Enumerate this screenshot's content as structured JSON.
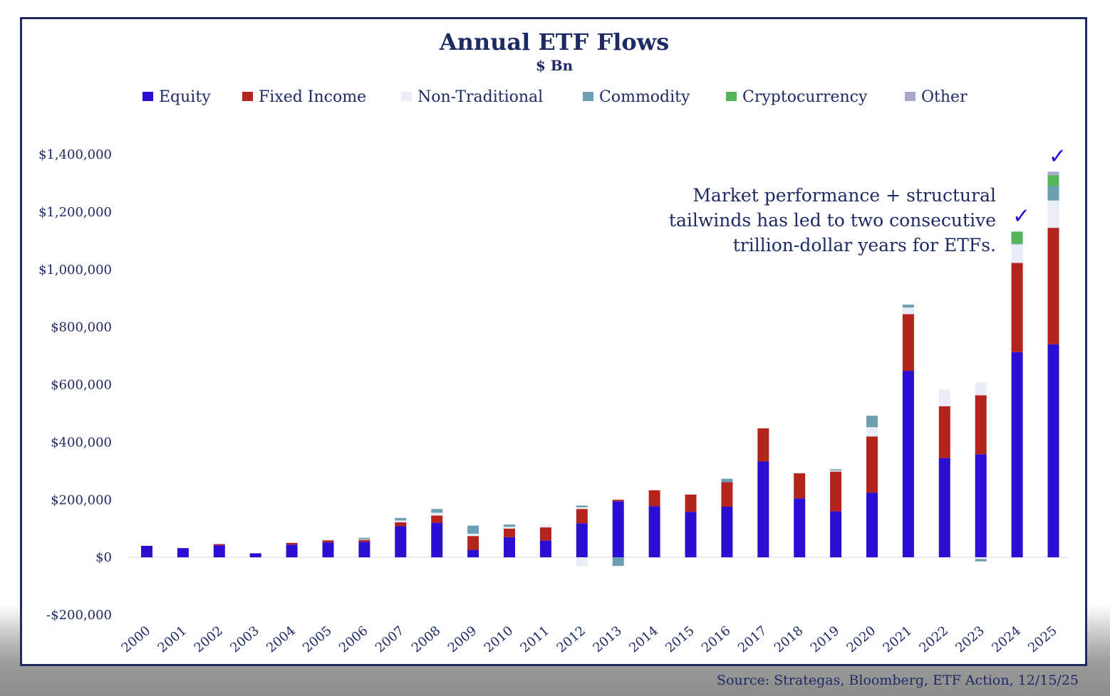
{
  "chart_data": {
    "type": "bar",
    "stacked": true,
    "title": "Annual ETF Flows",
    "subtitle": "$ Bn",
    "xlabel": "",
    "ylabel": "",
    "ylim": [
      -200000,
      1400000
    ],
    "yticks": [
      -200000,
      0,
      200000,
      400000,
      600000,
      800000,
      1000000,
      1200000,
      1400000
    ],
    "ytick_labels": [
      "-$200,000",
      "$0",
      "$200,000",
      "$400,000",
      "$600,000",
      "$800,000",
      "$1,000,000",
      "$1,200,000",
      "$1,400,000"
    ],
    "categories": [
      "2000",
      "2001",
      "2002",
      "2003",
      "2004",
      "2005",
      "2006",
      "2007",
      "2008",
      "2009",
      "2010",
      "2011",
      "2012",
      "2013",
      "2014",
      "2015",
      "2016",
      "2017",
      "2018",
      "2019",
      "2020",
      "2021",
      "2022",
      "2023",
      "2024",
      "2025"
    ],
    "series": [
      {
        "name": "Equity",
        "color": "#2a0ed1",
        "values": [
          40000,
          32000,
          42000,
          14000,
          44000,
          52000,
          54000,
          108000,
          120000,
          26000,
          70000,
          58000,
          118000,
          195000,
          178000,
          158000,
          176000,
          333000,
          205000,
          160000,
          225000,
          648000,
          345000,
          358000,
          713000,
          740000
        ]
      },
      {
        "name": "Fixed Income",
        "color": "#b5231d",
        "values": [
          0,
          0,
          4000,
          0,
          6000,
          7000,
          7000,
          14000,
          25000,
          48000,
          30000,
          46000,
          50000,
          5000,
          55000,
          60000,
          85000,
          115000,
          87000,
          138000,
          195000,
          197000,
          180000,
          205000,
          310000,
          405000
        ]
      },
      {
        "name": "Non-Traditional",
        "color": "#e9edf8",
        "values": [
          0,
          0,
          0,
          0,
          0,
          0,
          2000,
          6000,
          10000,
          8000,
          6000,
          8000,
          6000,
          0,
          0,
          0,
          0,
          0,
          4000,
          4000,
          32000,
          23000,
          58000,
          45000,
          65000,
          95000
        ]
      },
      {
        "name": "Commodity",
        "color": "#6b9fb1",
        "values": [
          0,
          0,
          0,
          0,
          0,
          0,
          5000,
          9000,
          13000,
          28000,
          8000,
          0,
          6000,
          -30000,
          0,
          0,
          12000,
          0,
          0,
          4000,
          40000,
          10000,
          0,
          0,
          2000,
          50000
        ]
      },
      {
        "name": "Cryptocurrency",
        "color": "#56b45a",
        "values": [
          0,
          0,
          0,
          0,
          0,
          0,
          0,
          0,
          0,
          0,
          0,
          0,
          0,
          0,
          0,
          0,
          0,
          0,
          0,
          0,
          0,
          0,
          0,
          0,
          42000,
          38000
        ]
      },
      {
        "name": "Other",
        "color": "#a6a9cb",
        "values": [
          0,
          0,
          0,
          0,
          0,
          0,
          0,
          0,
          0,
          0,
          0,
          0,
          0,
          0,
          0,
          0,
          0,
          0,
          0,
          0,
          0,
          0,
          0,
          0,
          0,
          12000
        ]
      }
    ],
    "negatives": [
      {
        "series": "Non-Traditional",
        "category": "2012",
        "value": -30000
      },
      {
        "series": "Non-Traditional",
        "category": "2021",
        "value": -4000
      },
      {
        "series": "Non-Traditional",
        "category": "2022",
        "value": -3000
      },
      {
        "series": "Non-Traditional",
        "category": "2023",
        "value": -6000
      },
      {
        "series": "Commodity",
        "category": "2023",
        "value": -8000
      }
    ],
    "annotation": {
      "lines": [
        "Market performance + structural",
        "tailwinds has led to two consecutive",
        "trillion-dollar years for ETFs."
      ],
      "checkmark": "✓",
      "checkmark_years": [
        "2024",
        "2025"
      ]
    },
    "legend_position": "top",
    "grid": false
  },
  "source": "Source: Strategas, Bloomberg, ETF Action, 12/15/25"
}
